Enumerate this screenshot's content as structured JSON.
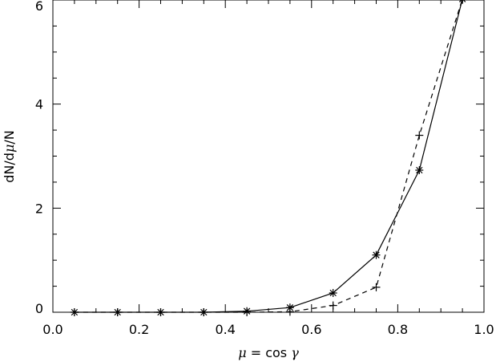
{
  "chart_data": {
    "type": "line",
    "title": "",
    "xlabel": {
      "mu": "μ",
      "rest": " = cos ",
      "gamma": "γ"
    },
    "ylabel": {
      "pre": "dN/d",
      "mu": "μ",
      "post": "/N"
    },
    "xlim": [
      0.0,
      1.0
    ],
    "ylim": [
      0,
      6
    ],
    "xticks": [
      0.0,
      0.2,
      0.4,
      0.6,
      0.8,
      1.0
    ],
    "xtick_labels": [
      "0.0",
      "0.2",
      "0.4",
      "0.6",
      "0.8",
      "1.0"
    ],
    "yticks": [
      0,
      2,
      4,
      6
    ],
    "ytick_labels": [
      "0",
      "2",
      "4",
      "6"
    ],
    "grid": false,
    "legend": "none",
    "series": [
      {
        "line_style": "solid",
        "marker": "asterisk",
        "x": [
          0.05,
          0.15,
          0.25,
          0.35,
          0.45,
          0.55,
          0.65,
          0.75,
          0.85,
          0.95
        ],
        "y": [
          0.0,
          0.0,
          0.0,
          0.0,
          0.02,
          0.09,
          0.37,
          1.1,
          2.73,
          6.02
        ]
      },
      {
        "line_style": "dashed",
        "marker": "plus",
        "x": [
          0.05,
          0.15,
          0.25,
          0.35,
          0.45,
          0.55,
          0.65,
          0.75,
          0.85,
          0.95
        ],
        "y": [
          0.0,
          0.0,
          0.0,
          0.0,
          0.0,
          0.01,
          0.13,
          0.48,
          3.4,
          6.02
        ]
      }
    ]
  }
}
